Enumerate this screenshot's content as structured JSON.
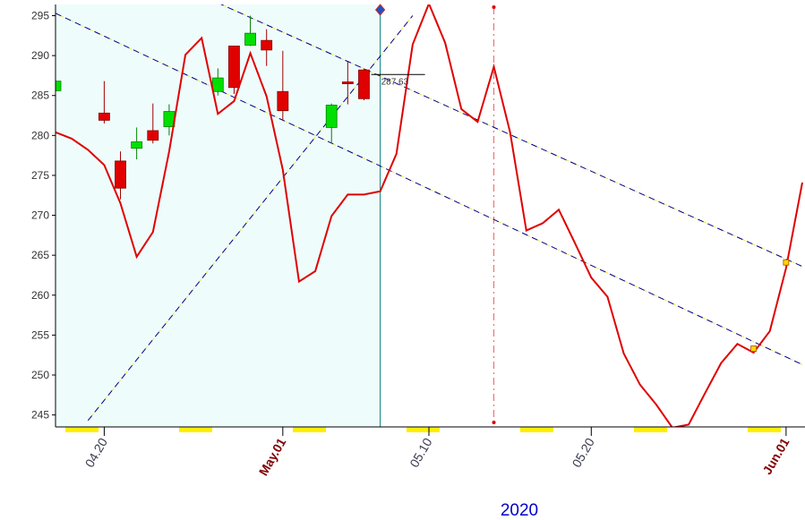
{
  "chart_data": {
    "type": "candlestick",
    "x_label": "2020",
    "xlim": [
      "2020-04-17",
      "2020-06-02"
    ],
    "ylim": [
      243.5,
      296.4
    ],
    "xticks": [
      {
        "value": "2020-04-20",
        "label": "04.20"
      },
      {
        "value": "2020-05-01",
        "label": "May.01"
      },
      {
        "value": "2020-05-10",
        "label": "05.10"
      },
      {
        "value": "2020-05-20",
        "label": "05.20"
      },
      {
        "value": "2020-06-01",
        "label": "Jun.01"
      }
    ],
    "yticks": [
      245,
      250,
      255,
      260,
      265,
      270,
      275,
      280,
      285,
      290,
      295
    ],
    "up_color": "#00e000",
    "down_color": "#e00000",
    "candles": {
      "x": [
        "2020-04-17",
        "2020-04-20",
        "2020-04-21",
        "2020-04-22",
        "2020-04-23",
        "2020-04-24",
        "2020-04-27",
        "2020-04-28",
        "2020-04-29",
        "2020-04-30",
        "2020-05-01",
        "2020-05-04",
        "2020-05-05",
        "2020-05-06"
      ],
      "open": [
        285.6,
        282.8,
        276.8,
        278.4,
        280.6,
        281.1,
        285.5,
        291.2,
        291.3,
        291.9,
        285.5,
        281.0,
        286.7,
        288.2
      ],
      "high": [
        286.9,
        286.8,
        278.0,
        281.0,
        284.0,
        283.9,
        288.4,
        291.2,
        295.0,
        293.3,
        290.6,
        284.0,
        289.2,
        288.4
      ],
      "low": [
        282.4,
        281.5,
        272.0,
        277.0,
        279.0,
        280.0,
        285.0,
        285.2,
        291.2,
        288.7,
        281.9,
        279.0,
        283.9,
        284.4
      ],
      "close": [
        286.8,
        281.9,
        273.4,
        279.2,
        279.4,
        283.0,
        287.2,
        286.0,
        292.8,
        290.7,
        283.1,
        283.8,
        286.5,
        284.6
      ]
    },
    "forecast": {
      "color": "#e00000",
      "x": [
        "2020-04-17",
        "2020-04-18",
        "2020-04-19",
        "2020-04-20",
        "2020-04-21",
        "2020-04-22",
        "2020-04-23",
        "2020-04-24",
        "2020-04-25",
        "2020-04-26",
        "2020-04-27",
        "2020-04-28",
        "2020-04-29",
        "2020-04-30",
        "2020-05-01",
        "2020-05-02",
        "2020-05-03",
        "2020-05-04",
        "2020-05-05",
        "2020-05-06",
        "2020-05-07",
        "2020-05-08",
        "2020-05-09",
        "2020-05-10",
        "2020-05-11",
        "2020-05-12",
        "2020-05-13",
        "2020-05-14",
        "2020-05-15",
        "2020-05-16",
        "2020-05-17",
        "2020-05-18",
        "2020-05-19",
        "2020-05-20",
        "2020-05-21",
        "2020-05-22",
        "2020-05-23",
        "2020-05-24",
        "2020-05-25",
        "2020-05-26",
        "2020-05-27",
        "2020-05-28",
        "2020-05-29",
        "2020-05-30",
        "2020-05-31",
        "2020-06-01",
        "2020-06-02"
      ],
      "values": [
        280.4,
        279.6,
        278.2,
        276.3,
        271.5,
        264.8,
        267.9,
        278.0,
        290.1,
        292.2,
        282.7,
        284.3,
        290.3,
        284.9,
        275.7,
        261.7,
        263.0,
        269.9,
        272.6,
        272.6,
        273.0,
        277.7,
        291.4,
        296.5,
        291.6,
        283.3,
        281.7,
        288.6,
        280.4,
        268.1,
        269.0,
        270.7,
        266.5,
        262.2,
        259.8,
        252.7,
        248.8,
        246.3,
        243.4,
        243.8,
        247.7,
        251.5,
        253.9,
        252.8,
        255.5,
        263.4,
        274.1
      ]
    },
    "trend_lines": [
      {
        "x": [
          "2020-04-27",
          "2020-06-02"
        ],
        "y": [
          296.6,
          263.6
        ],
        "color": "#000080"
      },
      {
        "x": [
          "2020-04-17",
          "2020-06-02"
        ],
        "y": [
          295.3,
          251.3
        ],
        "color": "#000080"
      },
      {
        "x": [
          "2020-04-19",
          "2020-05-09"
        ],
        "y": [
          244.3,
          295.0
        ],
        "color": "#000080"
      }
    ],
    "channel_points": {
      "x": [
        "2020-05-30",
        "2020-06-01"
      ],
      "y": [
        253.3,
        264.1
      ],
      "color": "#ffd700"
    },
    "now_line": {
      "x": "2020-05-07",
      "color": "#008080",
      "shade": "#effcfc"
    },
    "event_line": {
      "x": "2020-05-14",
      "color": "#e00000"
    },
    "last_price": 287.63
  }
}
